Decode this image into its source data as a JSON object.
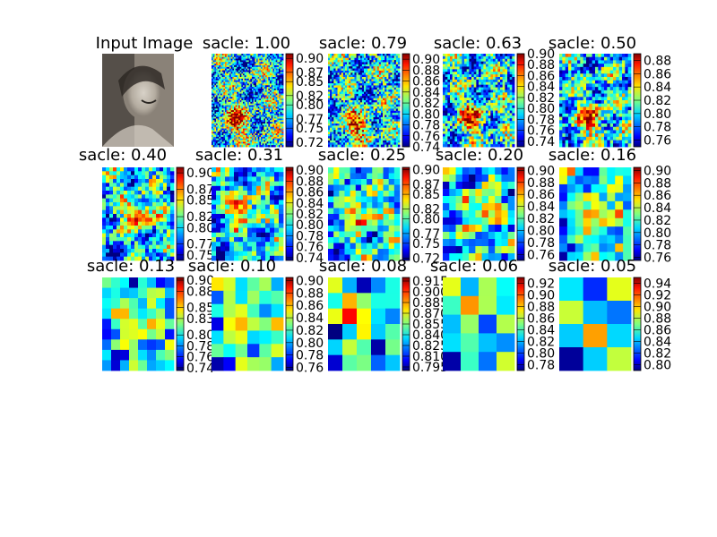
{
  "chart_data": [
    {
      "type": "image",
      "title": "Input Image",
      "content": "grayscale portrait photograph",
      "palette": {
        "dark": "#2a2622",
        "mid": "#8a8278",
        "light": "#d8d2c8"
      }
    },
    {
      "type": "heatmap",
      "title": "sacle: 1.00",
      "colorbar_ticks": [
        "0.90",
        "0.87",
        "0.85",
        "0.82",
        "0.80",
        "0.77",
        "0.75",
        "0.72"
      ],
      "vmin": 0.71,
      "vmax": 0.91,
      "grid": [
        56,
        48
      ],
      "hot_spot": [
        0.35,
        0.72
      ]
    },
    {
      "type": "heatmap",
      "title": "sacle: 0.79",
      "colorbar_ticks": [
        "0.90",
        "0.88",
        "0.86",
        "0.84",
        "0.82",
        "0.80",
        "0.78",
        "0.76",
        "0.74"
      ],
      "vmin": 0.74,
      "vmax": 0.91,
      "grid": [
        44,
        38
      ],
      "hot_spot": [
        0.4,
        0.78
      ]
    },
    {
      "type": "heatmap",
      "title": "sacle: 0.63",
      "colorbar_ticks": [
        "0.90",
        "0.88",
        "0.86",
        "0.84",
        "0.82",
        "0.80",
        "0.78",
        "0.76",
        "0.74"
      ],
      "vmin": 0.73,
      "vmax": 0.9,
      "grid": [
        36,
        30
      ],
      "hot_spot": [
        0.42,
        0.7
      ]
    },
    {
      "type": "heatmap",
      "title": "sacle: 0.50",
      "colorbar_ticks": [
        "0.88",
        "0.86",
        "0.84",
        "0.82",
        "0.80",
        "0.78",
        "0.76"
      ],
      "vmin": 0.75,
      "vmax": 0.89,
      "grid": [
        28,
        24
      ],
      "hot_spot": [
        0.45,
        0.72
      ]
    },
    {
      "type": "heatmap",
      "title": "sacle: 0.40",
      "colorbar_ticks": [
        "0.90",
        "0.87",
        "0.85",
        "0.82",
        "0.80",
        "0.77",
        "0.75"
      ],
      "vmin": 0.74,
      "vmax": 0.91,
      "grid": [
        24,
        20
      ],
      "hot_spot": [
        0.5,
        0.5
      ]
    },
    {
      "type": "heatmap",
      "title": "sacle: 0.31",
      "colorbar_ticks": [
        "0.90",
        "0.88",
        "0.86",
        "0.84",
        "0.82",
        "0.80",
        "0.78",
        "0.76",
        "0.74"
      ],
      "vmin": 0.735,
      "vmax": 0.905,
      "grid": [
        20,
        16
      ],
      "hot_spot": [
        0.45,
        0.45
      ]
    },
    {
      "type": "heatmap",
      "title": "sacle: 0.25",
      "colorbar_ticks": [
        "0.90",
        "0.87",
        "0.85",
        "0.82",
        "0.80",
        "0.77",
        "0.75",
        "0.72"
      ],
      "vmin": 0.715,
      "vmax": 0.905,
      "grid": [
        16,
        13
      ],
      "hot_spot": [
        0.5,
        0.5
      ]
    },
    {
      "type": "heatmap",
      "title": "sacle: 0.20",
      "colorbar_ticks": [
        "0.90",
        "0.88",
        "0.86",
        "0.84",
        "0.82",
        "0.80",
        "0.78",
        "0.76"
      ],
      "vmin": 0.75,
      "vmax": 0.905,
      "grid": [
        13,
        11
      ],
      "hot_spot": [
        0.55,
        0.45
      ]
    },
    {
      "type": "heatmap",
      "title": "sacle: 0.16",
      "colorbar_ticks": [
        "0.90",
        "0.88",
        "0.86",
        "0.84",
        "0.82",
        "0.80",
        "0.78",
        "0.76"
      ],
      "vmin": 0.755,
      "vmax": 0.905,
      "grid": [
        11,
        9
      ],
      "hot_spot": [
        0.5,
        0.5
      ]
    },
    {
      "type": "heatmap",
      "title": "sacle: 0.13",
      "colorbar_ticks": [
        "0.90",
        "0.88",
        "0.85",
        "0.83",
        "0.80",
        "0.78",
        "0.76",
        "0.74"
      ],
      "vmin": 0.735,
      "vmax": 0.905,
      "grid": [
        9,
        8
      ],
      "hot_spot": [
        0.5,
        0.45
      ]
    },
    {
      "type": "heatmap",
      "title": "sacle: 0.10",
      "colorbar_ticks": [
        "0.90",
        "0.88",
        "0.86",
        "0.84",
        "0.82",
        "0.80",
        "0.78",
        "0.76"
      ],
      "vmin": 0.755,
      "vmax": 0.905,
      "grid": [
        7,
        6
      ],
      "hot_spot": [
        0.45,
        0.45
      ]
    },
    {
      "type": "heatmap",
      "title": "sacle: 0.08",
      "colorbar_ticks": [
        "0.915",
        "0.900",
        "0.885",
        "0.870",
        "0.855",
        "0.840",
        "0.825",
        "0.810",
        "0.795"
      ],
      "vmin": 0.79,
      "vmax": 0.92,
      "grid": [
        6,
        5
      ],
      "hot_spot": [
        0.45,
        0.4
      ]
    },
    {
      "type": "heatmap",
      "title": "sacle: 0.06",
      "colorbar_ticks": [
        "0.92",
        "0.90",
        "0.88",
        "0.86",
        "0.84",
        "0.82",
        "0.80",
        "0.78"
      ],
      "vmin": 0.77,
      "vmax": 0.93,
      "grid": [
        5,
        4
      ],
      "hot_spot": [
        0.45,
        0.35
      ]
    },
    {
      "type": "heatmap",
      "title": "sacle: 0.05",
      "colorbar_ticks": [
        "0.94",
        "0.92",
        "0.90",
        "0.88",
        "0.86",
        "0.84",
        "0.82",
        "0.80"
      ],
      "vmin": 0.79,
      "vmax": 0.95,
      "grid": [
        4,
        3
      ],
      "hot_spot": [
        0.55,
        0.5
      ]
    }
  ]
}
